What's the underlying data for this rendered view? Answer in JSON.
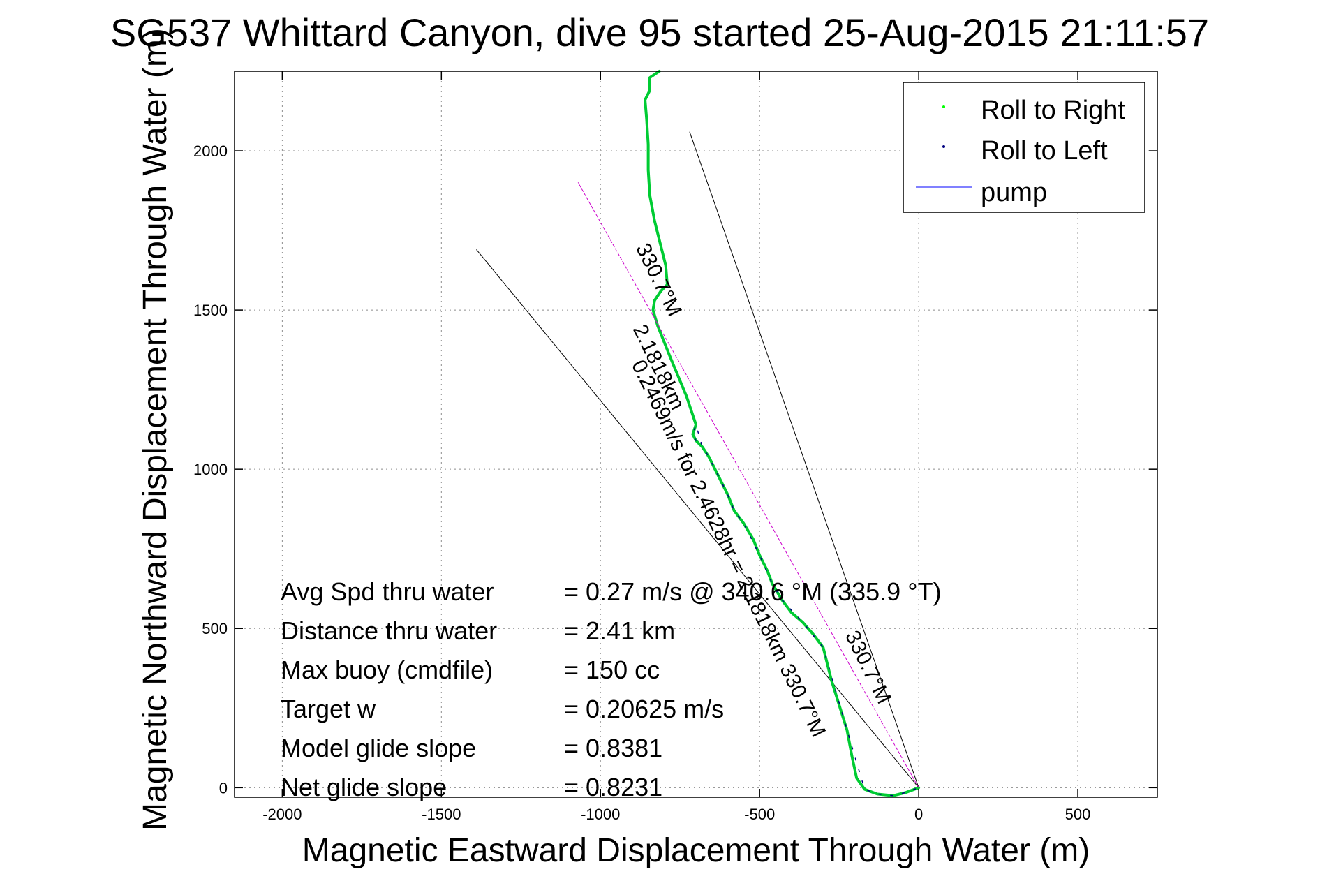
{
  "chart_data": {
    "type": "line",
    "title": "SG537 Whittard Canyon, dive 95 started 25-Aug-2015 21:11:57",
    "xlabel": "Magnetic Eastward Displacement Through Water (m)",
    "ylabel": "Magnetic Northward Displacement Through Water (m)",
    "xlim": [
      -2150,
      750
    ],
    "ylim": [
      -30,
      2250
    ],
    "xticks": [
      -2000,
      -1500,
      -1000,
      -500,
      0,
      500
    ],
    "yticks": [
      0,
      500,
      1000,
      1500,
      2000
    ],
    "grid": true,
    "legend_position": "top-right",
    "legend": [
      {
        "label": "Roll to Right",
        "color": "#00ff00",
        "marker": "dot"
      },
      {
        "label": "Roll to Left",
        "color": "#000080",
        "marker": "dot"
      },
      {
        "label": "pump",
        "color": "#0000ff",
        "marker": "line"
      }
    ],
    "series": [
      {
        "name": "Roll to Right",
        "color": "#00cc33",
        "points": [
          [
            0,
            0
          ],
          [
            -40,
            -15
          ],
          [
            -80,
            -25
          ],
          [
            -130,
            -20
          ],
          [
            -170,
            -5
          ],
          [
            -195,
            30
          ],
          [
            -210,
            100
          ],
          [
            -225,
            180
          ],
          [
            -250,
            260
          ],
          [
            -275,
            340
          ],
          [
            -290,
            400
          ],
          [
            -300,
            440
          ],
          [
            -330,
            480
          ],
          [
            -365,
            520
          ],
          [
            -400,
            550
          ],
          [
            -430,
            590
          ],
          [
            -460,
            640
          ],
          [
            -475,
            680
          ],
          [
            -500,
            730
          ],
          [
            -520,
            780
          ],
          [
            -550,
            830
          ],
          [
            -580,
            870
          ],
          [
            -600,
            920
          ],
          [
            -620,
            960
          ],
          [
            -640,
            1000
          ],
          [
            -660,
            1040
          ],
          [
            -680,
            1070
          ],
          [
            -700,
            1090
          ],
          [
            -710,
            1110
          ],
          [
            -700,
            1140
          ],
          [
            -710,
            1170
          ],
          [
            -730,
            1230
          ],
          [
            -755,
            1290
          ],
          [
            -780,
            1350
          ],
          [
            -800,
            1400
          ],
          [
            -820,
            1450
          ],
          [
            -835,
            1500
          ],
          [
            -830,
            1530
          ],
          [
            -810,
            1560
          ],
          [
            -790,
            1580
          ],
          [
            -795,
            1640
          ],
          [
            -810,
            1700
          ],
          [
            -830,
            1780
          ],
          [
            -845,
            1860
          ],
          [
            -850,
            1940
          ],
          [
            -850,
            2020
          ],
          [
            -855,
            2100
          ],
          [
            -860,
            2160
          ],
          [
            -845,
            2190
          ],
          [
            -845,
            2230
          ],
          [
            -815,
            2250
          ]
        ]
      },
      {
        "name": "Roll to Left",
        "color": "#000080",
        "points": [
          [
            -700,
            1090
          ],
          [
            -710,
            1110
          ],
          [
            -700,
            1140
          ],
          [
            -680,
            1070
          ],
          [
            -660,
            1040
          ],
          [
            -640,
            1000
          ],
          [
            -600,
            920
          ],
          [
            -580,
            870
          ],
          [
            -550,
            830
          ],
          [
            -500,
            730
          ],
          [
            -460,
            640
          ],
          [
            -430,
            590
          ],
          [
            -365,
            520
          ],
          [
            -300,
            440
          ],
          [
            -225,
            180
          ],
          [
            -170,
            -5
          ],
          [
            -130,
            -20
          ],
          [
            -80,
            -25
          ],
          [
            -40,
            -15
          ],
          [
            0,
            0
          ]
        ]
      },
      {
        "name": "pump",
        "color": "#cc00cc",
        "points": [
          [
            0,
            0
          ],
          [
            -1070,
            1900
          ]
        ]
      }
    ],
    "reference_lines": [
      {
        "color": "#000000",
        "points": [
          [
            0,
            0
          ],
          [
            -1390,
            1690
          ]
        ]
      },
      {
        "color": "#000000",
        "points": [
          [
            0,
            0
          ],
          [
            -720,
            2060
          ]
        ]
      }
    ],
    "annotations": {
      "along_line_1": "330.7°M",
      "along_line_2": "2.1818km",
      "along_line_3": "0.2469m/s for 2.4628hr = 2.1818km 330.7°M",
      "heading_short": "330.7°M"
    },
    "stats": [
      {
        "label": "Avg Spd thru water",
        "value": "=  0.27 m/s @ 340.6 °M (335.9 °T)"
      },
      {
        "label": "Distance thru water",
        "value": "=  2.41 km"
      },
      {
        "label": "Max buoy (cmdfile)",
        "value": "= 150 cc"
      },
      {
        "label": "Target w",
        "value": "= 0.20625 m/s"
      },
      {
        "label": "Model glide slope",
        "value": "= 0.8381"
      },
      {
        "label": "Net glide slope",
        "value": "= 0.8231"
      }
    ]
  }
}
